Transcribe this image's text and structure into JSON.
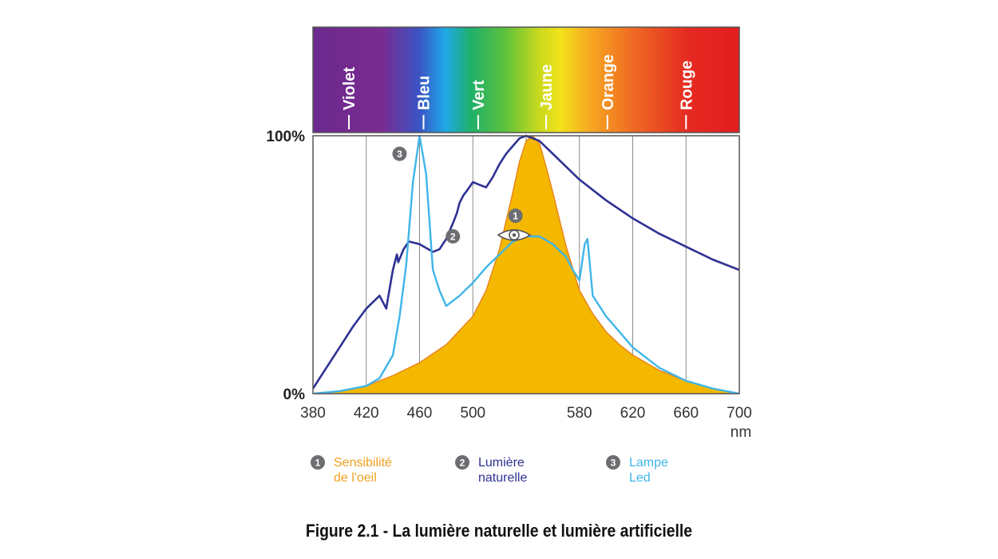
{
  "caption": "Figure 2.1 - La lumière naturelle et lumière artificielle",
  "chart_data": {
    "type": "line",
    "title": "",
    "xlabel": "nm",
    "ylabel": "",
    "xlim": [
      380,
      700
    ],
    "ylim": [
      0,
      100
    ],
    "x_ticks": [
      380,
      420,
      460,
      500,
      580,
      620,
      660,
      700
    ],
    "y_ticks": [
      {
        "value": 0,
        "label": "0%"
      },
      {
        "value": 100,
        "label": "100%"
      }
    ],
    "grid": true,
    "spectrum_colors": [
      {
        "stop": 0.0,
        "color": "#6b2a8e"
      },
      {
        "stop": 0.16,
        "color": "#7a2b90"
      },
      {
        "stop": 0.25,
        "color": "#3a55c4"
      },
      {
        "stop": 0.31,
        "color": "#1fa8e8"
      },
      {
        "stop": 0.37,
        "color": "#1eb06a"
      },
      {
        "stop": 0.45,
        "color": "#5cc13c"
      },
      {
        "stop": 0.53,
        "color": "#c9d91d"
      },
      {
        "stop": 0.58,
        "color": "#f2e21b"
      },
      {
        "stop": 0.65,
        "color": "#f6a821"
      },
      {
        "stop": 0.75,
        "color": "#ef6a23"
      },
      {
        "stop": 0.88,
        "color": "#e52a22"
      },
      {
        "stop": 1.0,
        "color": "#e31d1d"
      }
    ],
    "color_bands": [
      {
        "label": "Violet",
        "x": 407
      },
      {
        "label": "Bleu",
        "x": 463
      },
      {
        "label": "Vert",
        "x": 504
      },
      {
        "label": "Jaune",
        "x": 555
      },
      {
        "label": "Orange",
        "x": 601
      },
      {
        "label": "Rouge",
        "x": 660
      }
    ],
    "series": [
      {
        "name": "Sensibilité de l'oeil",
        "number": "1",
        "color": "#f5b800",
        "edge_color": "#e8851b",
        "fill": true,
        "x": [
          380,
          400,
          420,
          440,
          460,
          480,
          500,
          510,
          520,
          530,
          535,
          540,
          545,
          550,
          555,
          560,
          570,
          580,
          590,
          600,
          610,
          620,
          640,
          660,
          680,
          700
        ],
        "y": [
          0,
          1,
          3,
          7,
          12,
          19,
          30,
          40,
          56,
          78,
          90,
          98,
          100,
          97,
          88,
          78,
          57,
          40,
          31,
          24,
          19,
          15,
          9,
          5,
          2,
          0
        ]
      },
      {
        "name": "Lumière naturelle",
        "number": "2",
        "color": "#2e3192",
        "fill": false,
        "x": [
          380,
          390,
          400,
          410,
          420,
          430,
          435,
          436,
          440,
          443,
          444,
          448,
          452,
          460,
          470,
          475,
          480,
          485,
          488,
          490,
          493,
          496,
          500,
          505,
          510,
          515,
          520,
          525,
          530,
          535,
          540,
          545,
          550,
          560,
          570,
          580,
          600,
          620,
          640,
          660,
          680,
          700
        ],
        "y": [
          2,
          10,
          18,
          26,
          33,
          38,
          33,
          36,
          48,
          54,
          51,
          56,
          59,
          58,
          55,
          56,
          60,
          66,
          70,
          74,
          77,
          79,
          82,
          81,
          80,
          84,
          89,
          93,
          96,
          99,
          100,
          99,
          98,
          93,
          88,
          83,
          75,
          68,
          62,
          57,
          52,
          48
        ]
      },
      {
        "name": "Lampe Led",
        "number": "3",
        "color": "#3fb5e8",
        "fill": false,
        "x": [
          380,
          400,
          420,
          430,
          440,
          445,
          450,
          455,
          460,
          465,
          470,
          475,
          480,
          490,
          500,
          510,
          520,
          530,
          540,
          550,
          560,
          570,
          575,
          580,
          584,
          586,
          590,
          600,
          620,
          640,
          660,
          680,
          700
        ],
        "y": [
          0,
          1,
          3,
          6,
          15,
          30,
          50,
          82,
          100,
          85,
          48,
          40,
          34,
          38,
          43,
          49,
          54,
          59,
          61,
          61,
          58,
          53,
          48,
          44,
          58,
          60,
          38,
          30,
          18,
          10,
          5,
          2,
          0
        ]
      }
    ]
  }
}
